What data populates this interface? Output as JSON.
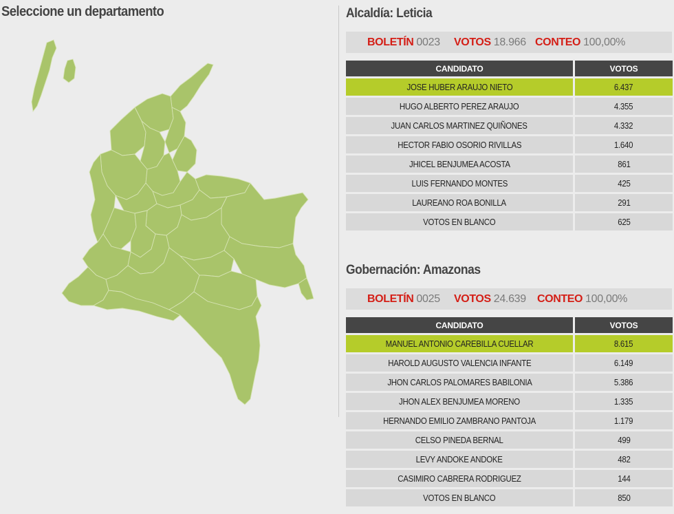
{
  "map_panel": {
    "title": "Seleccione un departamento"
  },
  "colors": {
    "map_fill": "#a9c46a",
    "winner_row": "#b5cc2a",
    "header_bg": "#454545",
    "stat_label": "#d41e16"
  },
  "alcaldia": {
    "title": "Alcaldía: Leticia",
    "boletin_label": "BOLETÍN",
    "boletin": "0023",
    "votos_label": "VOTOS",
    "votos": "18.966",
    "conteo_label": "CONTEO",
    "conteo": "100,00%",
    "col_candidato": "CANDIDATO",
    "col_votos": "VOTOS",
    "rows": [
      {
        "name": "JOSE HUBER ARAUJO NIETO",
        "votes": "6.437"
      },
      {
        "name": "HUGO ALBERTO PEREZ ARAUJO",
        "votes": "4.355"
      },
      {
        "name": "JUAN CARLOS MARTINEZ QUIÑONES",
        "votes": "4.332"
      },
      {
        "name": "HECTOR FABIO OSORIO RIVILLAS",
        "votes": "1.640"
      },
      {
        "name": "JHICEL BENJUMEA ACOSTA",
        "votes": "861"
      },
      {
        "name": "LUIS FERNANDO MONTES",
        "votes": "425"
      },
      {
        "name": "LAUREANO ROA BONILLA",
        "votes": "291"
      },
      {
        "name": "VOTOS EN BLANCO",
        "votes": "625"
      }
    ]
  },
  "gobernacion": {
    "title": "Gobernación: Amazonas",
    "boletin_label": "BOLETÍN",
    "boletin": "0025",
    "votos_label": "VOTOS",
    "votos": "24.639",
    "conteo_label": "CONTEO",
    "conteo": "100,00%",
    "col_candidato": "CANDIDATO",
    "col_votos": "VOTOS",
    "rows": [
      {
        "name": "MANUEL ANTONIO CAREBILLA CUELLAR",
        "votes": "8.615"
      },
      {
        "name": "HAROLD AUGUSTO VALENCIA INFANTE",
        "votes": "6.149"
      },
      {
        "name": "JHON CARLOS PALOMARES BABILONIA",
        "votes": "5.386"
      },
      {
        "name": "JHON ALEX BENJUMEA MORENO",
        "votes": "1.335"
      },
      {
        "name": "HERNANDO EMILIO ZAMBRANO PANTOJA",
        "votes": "1.179"
      },
      {
        "name": "CELSO PINEDA BERNAL",
        "votes": "499"
      },
      {
        "name": "LEVY ANDOKE ANDOKE",
        "votes": "482"
      },
      {
        "name": "CASIMIRO CABRERA RODRIGUEZ",
        "votes": "144"
      },
      {
        "name": "VOTOS EN BLANCO",
        "votes": "850"
      }
    ]
  }
}
